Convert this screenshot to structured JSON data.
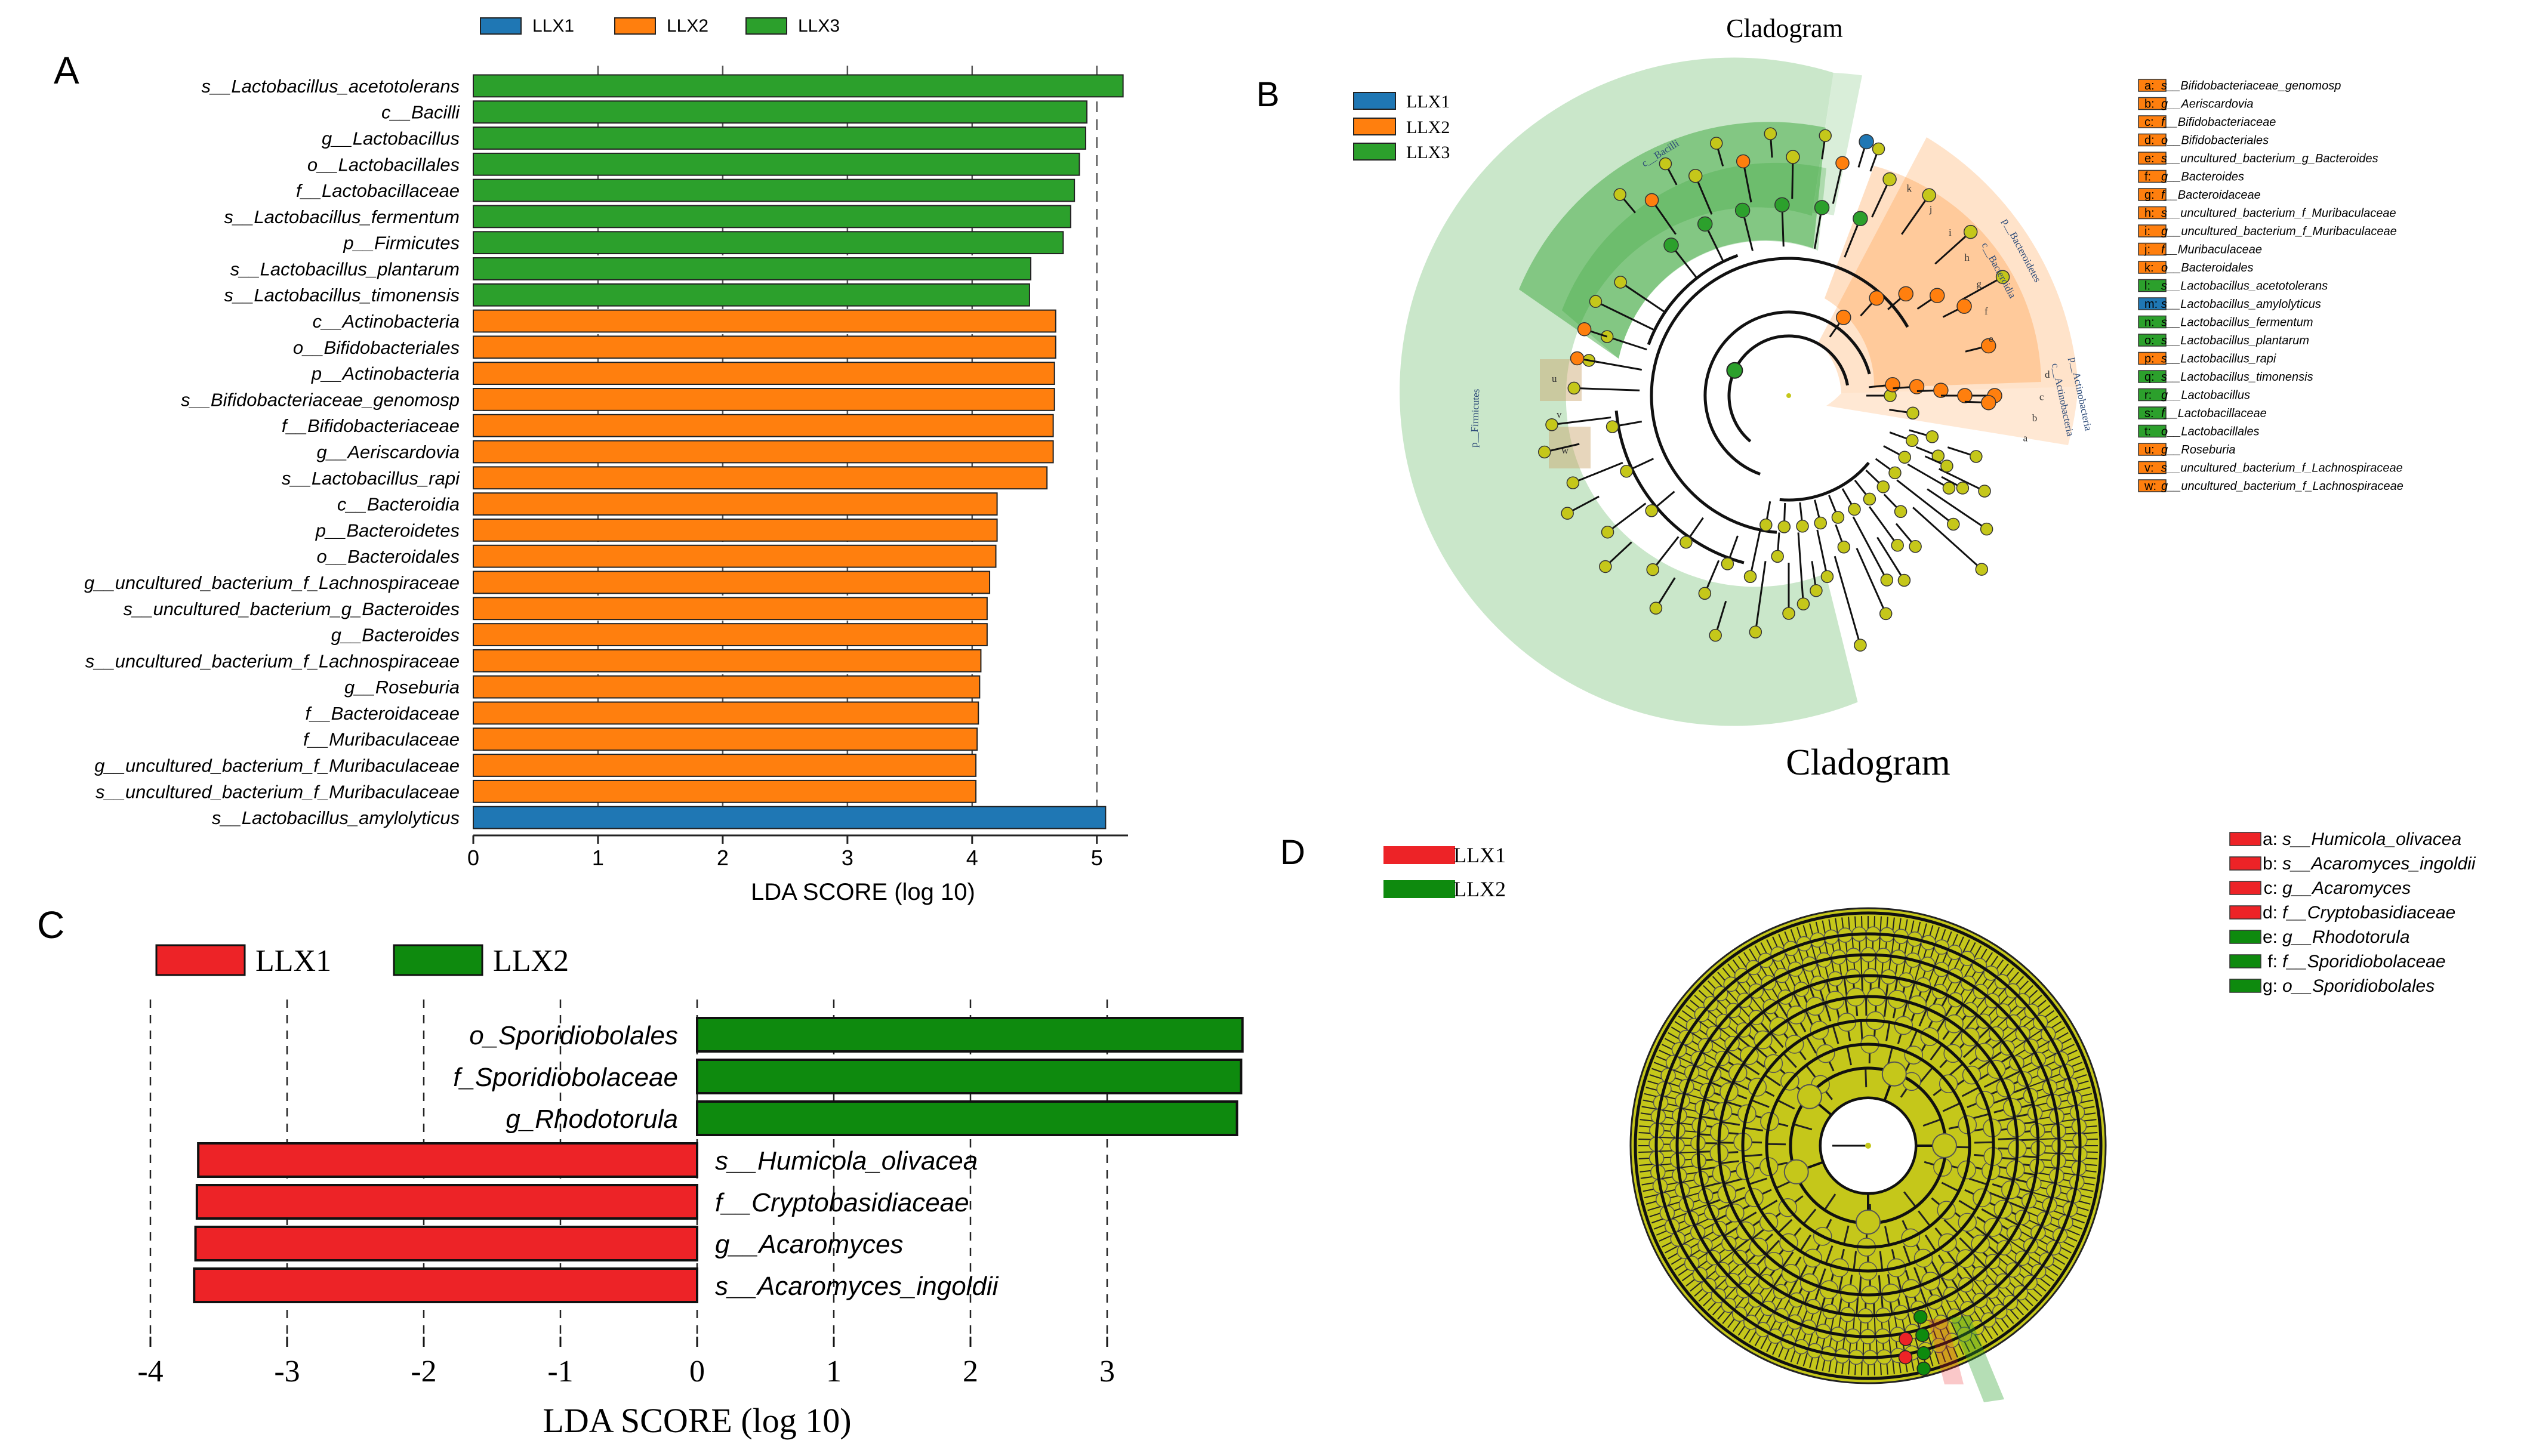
{
  "panel_letters": [
    "A",
    "B",
    "C",
    "D"
  ],
  "colors": {
    "LLX1_A": "#1f77b4",
    "LLX2_A": "#ff7f0e",
    "LLX3_A": "#2ca02c",
    "LLX1_C": "#ed2327",
    "LLX2_C": "#0e8a0e",
    "node_yellow": "#c5c71a",
    "tree_line": "#111111"
  },
  "chart_data": [
    {
      "panel": "A",
      "type": "bar",
      "orientation": "horizontal",
      "xlabel": "LDA SCORE (log 10)",
      "xlim": [
        0,
        5.25
      ],
      "xticks": [
        0,
        1,
        2,
        3,
        4,
        5
      ],
      "grid": "vertical dashed",
      "legend": [
        "LLX1",
        "LLX2",
        "LLX3"
      ],
      "legend_position": "top",
      "bars": [
        {
          "label": "s__Lactobacillus_acetotolerans",
          "value": 5.21,
          "group": "LLX3"
        },
        {
          "label": "c__Bacilli",
          "value": 4.92,
          "group": "LLX3"
        },
        {
          "label": "g__Lactobacillus",
          "value": 4.91,
          "group": "LLX3"
        },
        {
          "label": "o__Lactobacillales",
          "value": 4.86,
          "group": "LLX3"
        },
        {
          "label": "f__Lactobacillaceae",
          "value": 4.82,
          "group": "LLX3"
        },
        {
          "label": "s__Lactobacillus_fermentum",
          "value": 4.79,
          "group": "LLX3"
        },
        {
          "label": "p__Firmicutes",
          "value": 4.73,
          "group": "LLX3"
        },
        {
          "label": "s__Lactobacillus_plantarum",
          "value": 4.47,
          "group": "LLX3"
        },
        {
          "label": "s__Lactobacillus_timonensis",
          "value": 4.46,
          "group": "LLX3"
        },
        {
          "label": "c__Actinobacteria",
          "value": 4.67,
          "group": "LLX2"
        },
        {
          "label": "o__Bifidobacteriales",
          "value": 4.67,
          "group": "LLX2"
        },
        {
          "label": "p__Actinobacteria",
          "value": 4.66,
          "group": "LLX2"
        },
        {
          "label": "s__Bifidobacteriaceae_genomosp",
          "value": 4.66,
          "group": "LLX2"
        },
        {
          "label": "f__Bifidobacteriaceae",
          "value": 4.65,
          "group": "LLX2"
        },
        {
          "label": "g__Aeriscardovia",
          "value": 4.65,
          "group": "LLX2"
        },
        {
          "label": "s__Lactobacillus_rapi",
          "value": 4.6,
          "group": "LLX2"
        },
        {
          "label": "c__Bacteroidia",
          "value": 4.2,
          "group": "LLX2"
        },
        {
          "label": "p__Bacteroidetes",
          "value": 4.2,
          "group": "LLX2"
        },
        {
          "label": "o__Bacteroidales",
          "value": 4.19,
          "group": "LLX2"
        },
        {
          "label": "g__uncultured_bacterium_f_Lachnospiraceae",
          "value": 4.14,
          "group": "LLX2"
        },
        {
          "label": "s__uncultured_bacterium_g_Bacteroides",
          "value": 4.12,
          "group": "LLX2"
        },
        {
          "label": "g__Bacteroides",
          "value": 4.12,
          "group": "LLX2"
        },
        {
          "label": "s__uncultured_bacterium_f_Lachnospiraceae",
          "value": 4.07,
          "group": "LLX2"
        },
        {
          "label": "g__Roseburia",
          "value": 4.06,
          "group": "LLX2"
        },
        {
          "label": "f__Bacteroidaceae",
          "value": 4.05,
          "group": "LLX2"
        },
        {
          "label": "f__Muribaculaceae",
          "value": 4.04,
          "group": "LLX2"
        },
        {
          "label": "g__uncultured_bacterium_f_Muribaculaceae",
          "value": 4.03,
          "group": "LLX2"
        },
        {
          "label": "s__uncultured_bacterium_f_Muribaculaceae",
          "value": 4.03,
          "group": "LLX2"
        },
        {
          "label": "s__Lactobacillus_amylolyticus",
          "value": 5.07,
          "group": "LLX1"
        }
      ]
    },
    {
      "panel": "C",
      "type": "bar",
      "orientation": "horizontal",
      "xlabel": "LDA SCORE (log 10)",
      "xlim": [
        -4,
        3.5
      ],
      "xticks": [
        -4,
        -3,
        -2,
        -1,
        0,
        1,
        2,
        3
      ],
      "grid": "vertical dashed",
      "legend": [
        "LLX1",
        "LLX2"
      ],
      "legend_position": "top-left",
      "bars": [
        {
          "label": "o_Sporidiobolales",
          "value": 3.99,
          "group": "LLX2"
        },
        {
          "label": "f_Sporidiobolaceae",
          "value": 3.98,
          "group": "LLX2"
        },
        {
          "label": "g_Rhodotorula",
          "value": 3.95,
          "group": "LLX2"
        },
        {
          "label": "s__Humicola_olivacea",
          "value": -3.65,
          "group": "LLX1"
        },
        {
          "label": "f__Cryptobasidiaceae",
          "value": -3.66,
          "group": "LLX1"
        },
        {
          "label": "g__Acaromyces",
          "value": -3.67,
          "group": "LLX1"
        },
        {
          "label": "s__Acaromyces_ingoldii",
          "value": -3.68,
          "group": "LLX1"
        }
      ]
    }
  ],
  "panelB": {
    "title": "Cladogram",
    "legend": [
      "LLX1",
      "LLX2",
      "LLX3"
    ],
    "key": [
      {
        "letter": "a:",
        "text": "s__Bifidobacteriaceae_genomosp",
        "group": "LLX2"
      },
      {
        "letter": "b:",
        "text": "g__Aeriscardovia",
        "group": "LLX2"
      },
      {
        "letter": "c:",
        "text": "f__Bifidobacteriaceae",
        "group": "LLX2"
      },
      {
        "letter": "d:",
        "text": "o__Bifidobacteriales",
        "group": "LLX2"
      },
      {
        "letter": "e:",
        "text": "s__uncultured_bacterium_g_Bacteroides",
        "group": "LLX2"
      },
      {
        "letter": "f:",
        "text": "g__Bacteroides",
        "group": "LLX2"
      },
      {
        "letter": "g:",
        "text": "f__Bacteroidaceae",
        "group": "LLX2"
      },
      {
        "letter": "h:",
        "text": "s__uncultured_bacterium_f_Muribaculaceae",
        "group": "LLX2"
      },
      {
        "letter": "i:",
        "text": "g__uncultured_bacterium_f_Muribaculaceae",
        "group": "LLX2"
      },
      {
        "letter": "j:",
        "text": "f__Muribaculaceae",
        "group": "LLX2"
      },
      {
        "letter": "k:",
        "text": "o__Bacteroidales",
        "group": "LLX2"
      },
      {
        "letter": "l:",
        "text": "s__Lactobacillus_acetotolerans",
        "group": "LLX3"
      },
      {
        "letter": "m:",
        "text": "s__Lactobacillus_amylolyticus",
        "group": "LLX1"
      },
      {
        "letter": "n:",
        "text": "s__Lactobacillus_fermentum",
        "group": "LLX3"
      },
      {
        "letter": "o:",
        "text": "s__Lactobacillus_plantarum",
        "group": "LLX3"
      },
      {
        "letter": "p:",
        "text": "s__Lactobacillus_rapi",
        "group": "LLX2"
      },
      {
        "letter": "q:",
        "text": "s__Lactobacillus_timonensis",
        "group": "LLX3"
      },
      {
        "letter": "r:",
        "text": "g__Lactobacillus",
        "group": "LLX3"
      },
      {
        "letter": "s:",
        "text": "f__Lactobacillaceae",
        "group": "LLX3"
      },
      {
        "letter": "t:",
        "text": "o__Lactobacillales",
        "group": "LLX3"
      },
      {
        "letter": "u:",
        "text": "g__Roseburia",
        "group": "LLX2"
      },
      {
        "letter": "v:",
        "text": "s__uncultured_bacterium_f_Lachnospiraceae",
        "group": "LLX2"
      },
      {
        "letter": "w:",
        "text": "g__uncultured_bacterium_f_Lachnospiraceae",
        "group": "LLX2"
      }
    ],
    "clade_labels": [
      "c__Bacilli",
      "p__Firmicutes",
      "p__Bacteroidetes",
      "c__Bacteroidia",
      "p__Actinobacteria",
      "c__Actinobacteria"
    ],
    "letters_bacteroidetes": [
      "k",
      "j",
      "i",
      "h",
      "g",
      "f",
      "e"
    ],
    "letters_actino": [
      "d",
      "c",
      "b",
      "a"
    ],
    "letters_lachno": [
      "u",
      "v",
      "w"
    ]
  },
  "panelD": {
    "title": "Cladogram",
    "legend": [
      "LLX1",
      "LLX2"
    ],
    "key": [
      {
        "letter": "a:",
        "text": "s__Humicola_olivacea",
        "group": "LLX1"
      },
      {
        "letter": "b:",
        "text": "s__Acaromyces_ingoldii",
        "group": "LLX1"
      },
      {
        "letter": "c:",
        "text": "g__Acaromyces",
        "group": "LLX1"
      },
      {
        "letter": "d:",
        "text": "f__Cryptobasidiaceae",
        "group": "LLX1"
      },
      {
        "letter": "e:",
        "text": "g__Rhodotorula",
        "group": "LLX2"
      },
      {
        "letter": "f:",
        "text": "f__Sporidiobolaceae",
        "group": "LLX2"
      },
      {
        "letter": "g:",
        "text": "o__Sporidiobolales",
        "group": "LLX2"
      }
    ]
  }
}
